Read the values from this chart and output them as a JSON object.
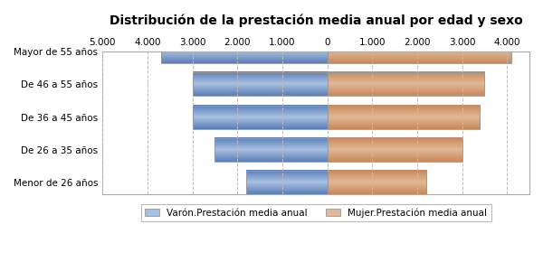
{
  "title": "Distribución de la prestación media anual por edad y sexo",
  "categories": [
    "Mayor de 55 años",
    "De 46 a 55 años",
    "De 36 a 45 años",
    "De 26 a 35 años",
    "Menor de 26 años"
  ],
  "male_values": [
    3700,
    3000,
    3000,
    2500,
    1800
  ],
  "female_values": [
    4100,
    3500,
    3400,
    3000,
    2200
  ],
  "male_color_dark": "#5B7DB8",
  "male_color_light": "#A8C0E0",
  "female_color_dark": "#C8885A",
  "female_color_light": "#E0B898",
  "male_label": "Varón.Prestación media anual",
  "female_label": "Mujer.Prestación media anual",
  "xlim": [
    -5000,
    4500
  ],
  "xticks": [
    -5000,
    -4000,
    -3000,
    -2000,
    -1000,
    0,
    1000,
    2000,
    3000,
    4000
  ],
  "tick_labels": [
    "5.000",
    "4.000",
    "3.000",
    "2.000",
    "1.000",
    "0",
    "1.000",
    "2.000",
    "3.000",
    "4.000"
  ],
  "background_color": "#ffffff",
  "plot_bg_color": "#ffffff",
  "grid_color": "#bbbbbb",
  "bar_height": 0.72,
  "title_fontsize": 10,
  "tick_fontsize": 7.5,
  "label_fontsize": 7.5,
  "legend_fontsize": 7.5
}
